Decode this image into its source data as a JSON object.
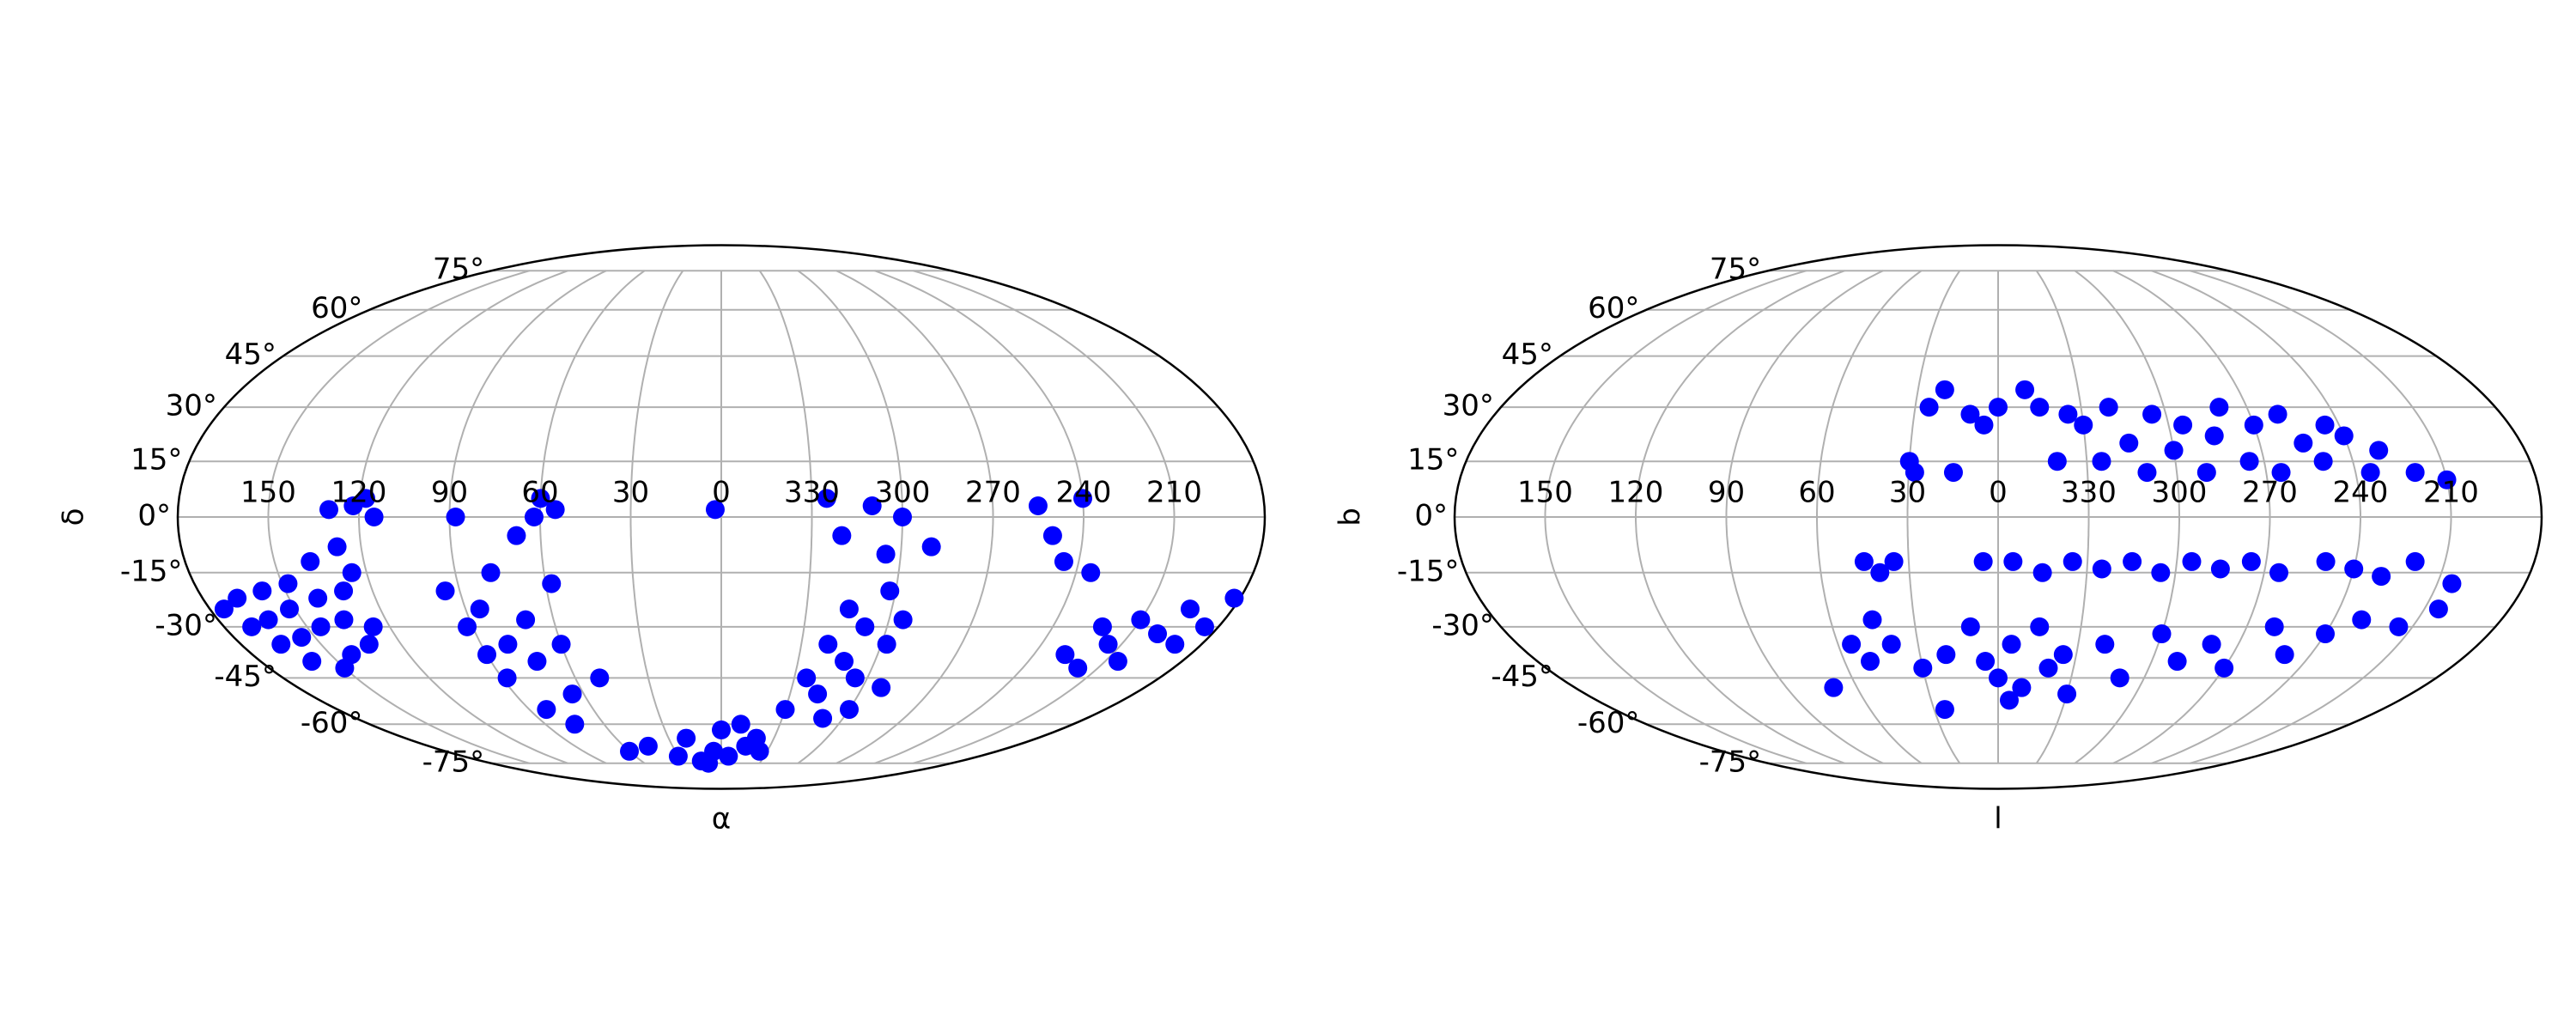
{
  "chart_data": [
    {
      "type": "scatter",
      "projection": "mollweide",
      "xlabel": "α",
      "ylabel": "δ",
      "color": "#0000ff",
      "grid": true,
      "xlim": [
        180,
        -180
      ],
      "ylim": [
        -90,
        90
      ],
      "xticks": [
        150,
        120,
        90,
        60,
        30,
        0,
        330,
        300,
        270,
        240,
        210
      ],
      "yticks": [
        {
          "value": -75,
          "label": "-75°"
        },
        {
          "value": -60,
          "label": "-60°"
        },
        {
          "value": -45,
          "label": "-45°"
        },
        {
          "value": -30,
          "label": "-30°"
        },
        {
          "value": -15,
          "label": "-15°"
        },
        {
          "value": 0,
          "label": "0°"
        },
        {
          "value": 15,
          "label": "15°"
        },
        {
          "value": 30,
          "label": "30°"
        },
        {
          "value": 45,
          "label": "45°"
        },
        {
          "value": 60,
          "label": "60°"
        },
        {
          "value": 75,
          "label": "75°"
        }
      ],
      "x": [
        175,
        170,
        168,
        165,
        162,
        160,
        158,
        155,
        152,
        150,
        148,
        145,
        142,
        140,
        138,
        135,
        132,
        130,
        128,
        126,
        125,
        130,
        122,
        118,
        115,
        95,
        92,
        90,
        88,
        85,
        82,
        80,
        78,
        75,
        72,
        70,
        68,
        65,
        62,
        60,
        58,
        55,
        50,
        88,
        60,
        60,
        45,
        30,
        15,
        5,
        355,
        345,
        335,
        20,
        0,
        350,
        340,
        10,
        330,
        325,
        320,
        318,
        315,
        312,
        310,
        308,
        305,
        302,
        300,
        298,
        295,
        292,
        325,
        320,
        310,
        305,
        300,
        290,
        2,
        250,
        245,
        255,
        240,
        235,
        228,
        222,
        218,
        215,
        210,
        205,
        200,
        195,
        190,
        185,
        182
      ],
      "y": [
        -25,
        -30,
        -22,
        -35,
        -28,
        -40,
        -20,
        -33,
        -25,
        -42,
        -18,
        -30,
        -38,
        -22,
        -12,
        -28,
        -35,
        -20,
        -8,
        -30,
        -15,
        2,
        3,
        5,
        0,
        -20,
        -30,
        -38,
        -45,
        -25,
        -55,
        -35,
        -15,
        -60,
        -40,
        -28,
        -5,
        -50,
        0,
        -35,
        -18,
        2,
        -45,
        0,
        5,
        -70,
        -68,
        -72,
        -74,
        -70,
        -72,
        -68,
        -70,
        -65,
        -62,
        -60,
        -65,
        -75,
        -55,
        -45,
        -35,
        -50,
        -25,
        -40,
        -58,
        -30,
        -45,
        -20,
        -55,
        -35,
        -28,
        -48,
        5,
        -5,
        3,
        -10,
        0,
        -8,
        2,
        -5,
        -12,
        3,
        5,
        -15,
        -38,
        -30,
        -42,
        -35,
        -28,
        -40,
        -32,
        -25,
        -35,
        -30,
        -22
      ]
    },
    {
      "type": "scatter",
      "projection": "mollweide",
      "xlabel": "l",
      "ylabel": "b",
      "color": "#0000ff",
      "grid": true,
      "xlim": [
        180,
        -180
      ],
      "ylim": [
        -90,
        90
      ],
      "xticks": [
        150,
        120,
        90,
        60,
        30,
        0,
        330,
        300,
        270,
        240,
        210
      ],
      "yticks": [
        {
          "value": -75,
          "label": "-75°"
        },
        {
          "value": -60,
          "label": "-60°"
        },
        {
          "value": -45,
          "label": "-45°"
        },
        {
          "value": -30,
          "label": "-30°"
        },
        {
          "value": -15,
          "label": "-15°"
        },
        {
          "value": 0,
          "label": "0°"
        },
        {
          "value": 15,
          "label": "15°"
        },
        {
          "value": 30,
          "label": "30°"
        },
        {
          "value": 45,
          "label": "45°"
        },
        {
          "value": 60,
          "label": "60°"
        },
        {
          "value": 75,
          "label": "75°"
        }
      ],
      "x": [
        20,
        25,
        10,
        5,
        30,
        28,
        15,
        0,
        350,
        345,
        330,
        325,
        320,
        315,
        310,
        305,
        300,
        295,
        290,
        285,
        280,
        275,
        270,
        265,
        260,
        255,
        250,
        245,
        240,
        235,
        230,
        220,
        210,
        340,
        335,
        5,
        355,
        345,
        335,
        325,
        315,
        305,
        295,
        285,
        275,
        265,
        250,
        240,
        230,
        220,
        205,
        45,
        40,
        35,
        55,
        50,
        45,
        40,
        30,
        20,
        10,
        5,
        0,
        355,
        350,
        345,
        340,
        335,
        330,
        320,
        310,
        300,
        290,
        280,
        270,
        260,
        250,
        240,
        230,
        215,
        205,
        70,
        25,
        355
      ],
      "y": [
        35,
        30,
        28,
        25,
        15,
        12,
        12,
        30,
        35,
        30,
        25,
        15,
        30,
        20,
        12,
        28,
        18,
        25,
        12,
        22,
        30,
        15,
        25,
        12,
        28,
        20,
        15,
        25,
        22,
        12,
        18,
        12,
        10,
        15,
        28,
        -12,
        -12,
        -15,
        -12,
        -14,
        -12,
        -15,
        -12,
        -14,
        -12,
        -15,
        -12,
        -14,
        -16,
        -12,
        -18,
        -12,
        -15,
        -12,
        -35,
        -40,
        -28,
        -35,
        -42,
        -38,
        -30,
        -40,
        -45,
        -35,
        -48,
        -30,
        -42,
        -38,
        -50,
        -35,
        -45,
        -32,
        -40,
        -35,
        -42,
        -30,
        -38,
        -32,
        -28,
        -30,
        -25,
        -48,
        -55,
        -52
      ]
    }
  ]
}
